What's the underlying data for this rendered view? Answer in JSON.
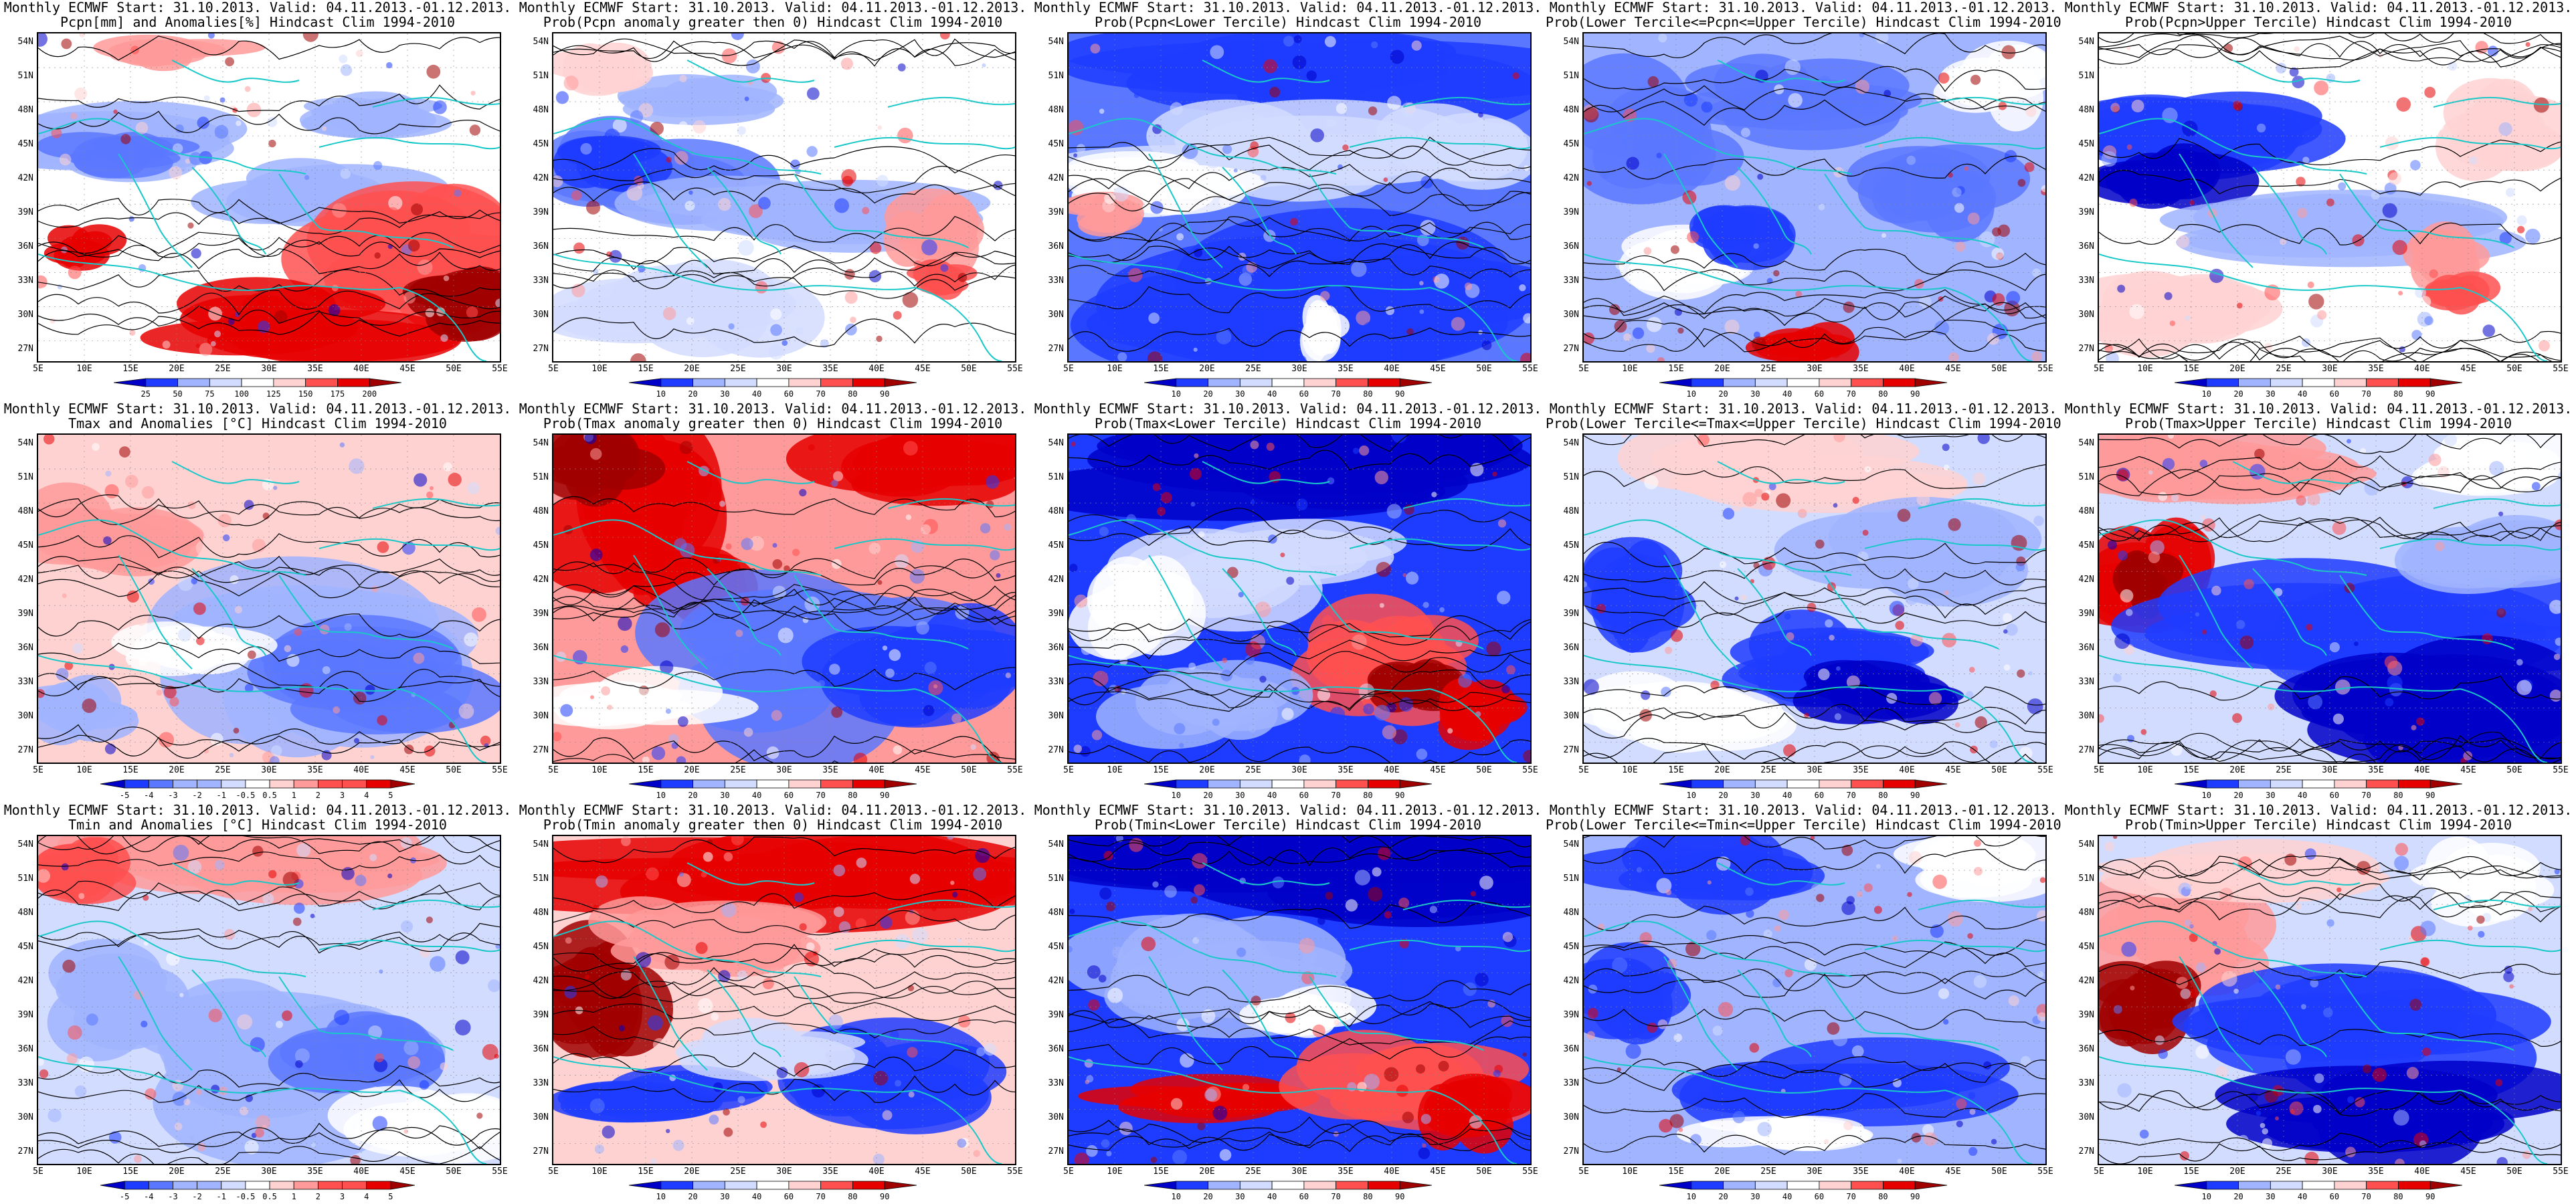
{
  "panels": [
    {
      "title1": "Monthly ECMWF Start: 31.10.2013. Valid: 04.11.2013.-01.12.2013.",
      "title2": "Pcpn[mm] and Anomalies[%] Hindcast Clim 1994-2010",
      "bar": "anom",
      "labels": [
        "25",
        "50",
        "75",
        "100",
        "125",
        "150",
        "175",
        "200"
      ],
      "pattern": "pcpn_anom"
    },
    {
      "title1": "Monthly ECMWF Start: 31.10.2013. Valid: 04.11.2013.-01.12.2013.",
      "title2": "Prob(Pcpn anomaly greater then 0) Hindcast Clim 1994-2010",
      "bar": "prob",
      "labels": [
        "10",
        "20",
        "30",
        "40",
        "60",
        "70",
        "80",
        "90"
      ],
      "pattern": "pcpn_pos"
    },
    {
      "title1": "Monthly ECMWF Start: 31.10.2013. Valid: 04.11.2013.-01.12.2013.",
      "title2": "Prob(Pcpn<Lower Tercile) Hindcast Clim 1994-2010",
      "bar": "prob",
      "labels": [
        "10",
        "20",
        "30",
        "40",
        "60",
        "70",
        "80",
        "90"
      ],
      "pattern": "pcpn_low"
    },
    {
      "title1": "Monthly ECMWF Start: 31.10.2013. Valid: 04.11.2013.-01.12.2013.",
      "title2": "Prob(Lower Tercile<=Pcpn<=Upper Tercile) Hindcast Clim 1994-2010",
      "bar": "prob",
      "labels": [
        "10",
        "20",
        "30",
        "40",
        "60",
        "70",
        "80",
        "90"
      ],
      "pattern": "pcpn_mid"
    },
    {
      "title1": "Monthly ECMWF Start: 31.10.2013. Valid: 04.11.2013.-01.12.2013.",
      "title2": "Prob(Pcpn>Upper Tercile) Hindcast Clim 1994-2010",
      "bar": "prob",
      "labels": [
        "10",
        "20",
        "30",
        "40",
        "60",
        "70",
        "80",
        "90"
      ],
      "pattern": "pcpn_up"
    },
    {
      "title1": "Monthly ECMWF Start: 31.10.2013. Valid: 04.11.2013.-01.12.2013.",
      "title2": "Tmax and Anomalies [°C] Hindcast Clim 1994-2010",
      "bar": "tanom",
      "labels": [
        "-5",
        "-4",
        "-3",
        "-2",
        "-1",
        "-0.5",
        "0.5",
        "1",
        "2",
        "3",
        "4",
        "5"
      ],
      "pattern": "tmax_anom"
    },
    {
      "title1": "Monthly ECMWF Start: 31.10.2013. Valid: 04.11.2013.-01.12.2013.",
      "title2": "Prob(Tmax anomaly greater then 0) Hindcast Clim 1994-2010",
      "bar": "prob",
      "labels": [
        "10",
        "20",
        "30",
        "40",
        "60",
        "70",
        "80",
        "90"
      ],
      "pattern": "tmax_pos"
    },
    {
      "title1": "Monthly ECMWF Start: 31.10.2013. Valid: 04.11.2013.-01.12.2013.",
      "title2": "Prob(Tmax<Lower Tercile) Hindcast Clim 1994-2010",
      "bar": "prob",
      "labels": [
        "10",
        "20",
        "30",
        "40",
        "60",
        "70",
        "80",
        "90"
      ],
      "pattern": "tmax_low"
    },
    {
      "title1": "Monthly ECMWF Start: 31.10.2013. Valid: 04.11.2013.-01.12.2013.",
      "title2": "Prob(Lower Tercile<=Tmax<=Upper Tercile) Hindcast Clim 1994-2010",
      "bar": "prob",
      "labels": [
        "10",
        "20",
        "30",
        "40",
        "60",
        "70",
        "80",
        "90"
      ],
      "pattern": "tmax_mid"
    },
    {
      "title1": "Monthly ECMWF Start: 31.10.2013. Valid: 04.11.2013.-01.12.2013.",
      "title2": "Prob(Tmax>Upper Tercile) Hindcast Clim 1994-2010",
      "bar": "prob",
      "labels": [
        "10",
        "20",
        "30",
        "40",
        "60",
        "70",
        "80",
        "90"
      ],
      "pattern": "tmax_up"
    },
    {
      "title1": "Monthly ECMWF Start: 31.10.2013. Valid: 04.11.2013.-01.12.2013.",
      "title2": "Tmin and Anomalies [°C] Hindcast Clim 1994-2010",
      "bar": "tanom",
      "labels": [
        "-5",
        "-4",
        "-3",
        "-2",
        "-1",
        "-0.5",
        "0.5",
        "1",
        "2",
        "3",
        "4",
        "5"
      ],
      "pattern": "tmin_anom"
    },
    {
      "title1": "Monthly ECMWF Start: 31.10.2013. Valid: 04.11.2013.-01.12.2013.",
      "title2": "Prob(Tmin anomaly greater then 0) Hindcast Clim 1994-2010",
      "bar": "prob",
      "labels": [
        "10",
        "20",
        "30",
        "40",
        "60",
        "70",
        "80",
        "90"
      ],
      "pattern": "tmin_pos"
    },
    {
      "title1": "Monthly ECMWF Start: 31.10.2013. Valid: 04.11.2013.-01.12.2013.",
      "title2": "Prob(Tmin<Lower Tercile) Hindcast Clim 1994-2010",
      "bar": "prob",
      "labels": [
        "10",
        "20",
        "30",
        "40",
        "60",
        "70",
        "80",
        "90"
      ],
      "pattern": "tmin_low"
    },
    {
      "title1": "Monthly ECMWF Start: 31.10.2013. Valid: 04.11.2013.-01.12.2013.",
      "title2": "Prob(Lower Tercile<=Tmin<=Upper Tercile) Hindcast Clim 1994-2010",
      "bar": "prob",
      "labels": [
        "10",
        "20",
        "30",
        "40",
        "60",
        "70",
        "80",
        "90"
      ],
      "pattern": "tmin_mid"
    },
    {
      "title1": "Monthly ECMWF Start: 31.10.2013. Valid: 04.11.2013.-01.12.2013.",
      "title2": "Prob(Tmin>Upper Tercile) Hindcast Clim 1994-2010",
      "bar": "prob",
      "labels": [
        "10",
        "20",
        "30",
        "40",
        "60",
        "70",
        "80",
        "90"
      ],
      "pattern": "tmin_up"
    }
  ],
  "lat_labels": [
    "54N",
    "51N",
    "48N",
    "45N",
    "42N",
    "39N",
    "36N",
    "33N",
    "30N",
    "27N"
  ],
  "lon_labels": [
    "5E",
    "10E",
    "15E",
    "20E",
    "25E",
    "30E",
    "35E",
    "40E",
    "45E",
    "50E",
    "55E"
  ],
  "colors": {
    "coast": "#19c8c8",
    "contour": "#000000",
    "scale": [
      "#0000c8",
      "#1e3cff",
      "#5a78ff",
      "#a0b4ff",
      "#d2dcff",
      "#ffffff",
      "#ffd2d2",
      "#ff9a9a",
      "#ff5050",
      "#e60000",
      "#a00000"
    ]
  }
}
